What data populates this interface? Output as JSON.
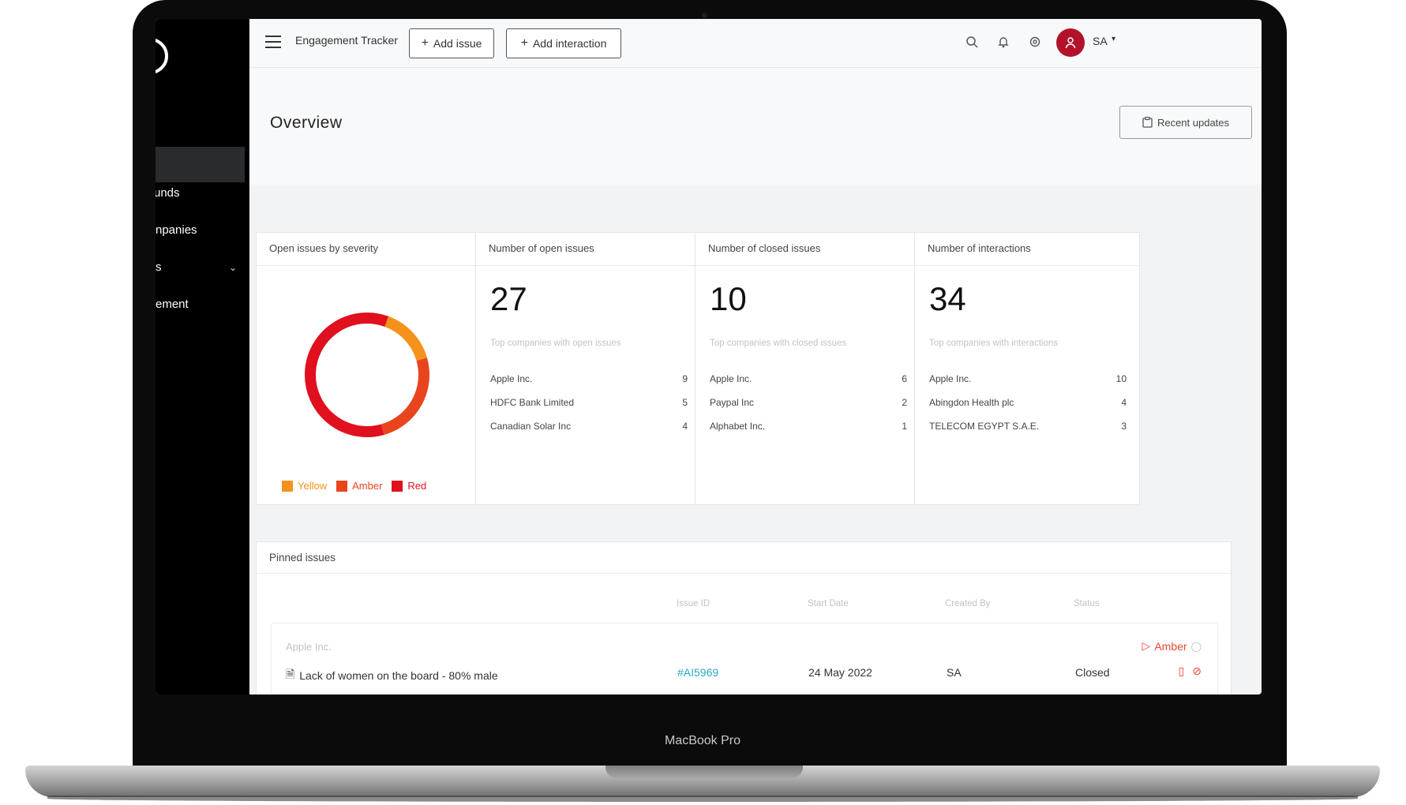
{
  "device": {
    "brand_label": "MacBook Pro"
  },
  "sidebar": {
    "items": [
      {
        "label": "Funds",
        "visible": "unds"
      },
      {
        "label": "Companies",
        "visible": "npanies"
      },
      {
        "label": "Issues",
        "visible": "s"
      },
      {
        "label": "Engagement",
        "visible": "ement"
      }
    ]
  },
  "topbar": {
    "app_title": "Engagement Tracker",
    "add_issue_label": "Add issue",
    "add_interaction_label": "Add interaction",
    "avatar_icon": "user-icon",
    "user_initials": "SA"
  },
  "header": {
    "title": "Overview",
    "recent_updates_label": "Recent updates"
  },
  "cards": {
    "severity": {
      "title": "Open issues by severity",
      "legend": [
        "Yellow",
        "Amber",
        "Red"
      ]
    },
    "open": {
      "title": "Number of open issues",
      "count": "27",
      "subtitle": "Top companies with open issues",
      "rows": [
        {
          "company": "Apple Inc.",
          "value": "9"
        },
        {
          "company": "HDFC Bank Limited",
          "value": "5"
        },
        {
          "company": "Canadian Solar Inc",
          "value": "4"
        }
      ]
    },
    "closed": {
      "title": "Number of closed issues",
      "count": "10",
      "subtitle": "Top companies with closed issues",
      "rows": [
        {
          "company": "Apple Inc.",
          "value": "6"
        },
        {
          "company": "Paypal Inc",
          "value": "2"
        },
        {
          "company": "Alphabet Inc.",
          "value": "1"
        }
      ]
    },
    "interactions": {
      "title": "Number of interactions",
      "count": "34",
      "subtitle": "Top companies with interactions",
      "rows": [
        {
          "company": "Apple Inc.",
          "value": "10"
        },
        {
          "company": "Abingdon Health plc",
          "value": "4"
        },
        {
          "company": "TELECOM EGYPT S.A.E.",
          "value": "3"
        }
      ]
    }
  },
  "chart_data": {
    "type": "pie",
    "donut": true,
    "categories": [
      "Yellow",
      "Amber",
      "Red"
    ],
    "values": [
      15,
      25,
      60
    ],
    "colors": [
      "#f4921c",
      "#e8451e",
      "#e0101e"
    ],
    "legend": "bottom"
  },
  "pinned": {
    "title": "Pinned issues",
    "columns": [
      "Issue ID",
      "Start Date",
      "Created By",
      "Status"
    ],
    "issue": {
      "company": "Apple Inc.",
      "title": "Lack of women on the board - 80% male",
      "id": "#AI5969",
      "start_date": "24 May 2022",
      "created_by": "SA",
      "status": "Closed",
      "severity": "Amber"
    }
  },
  "colors": {
    "accent_red": "#b3122b",
    "link": "#2aa6c0",
    "amber": "#e8452f"
  }
}
